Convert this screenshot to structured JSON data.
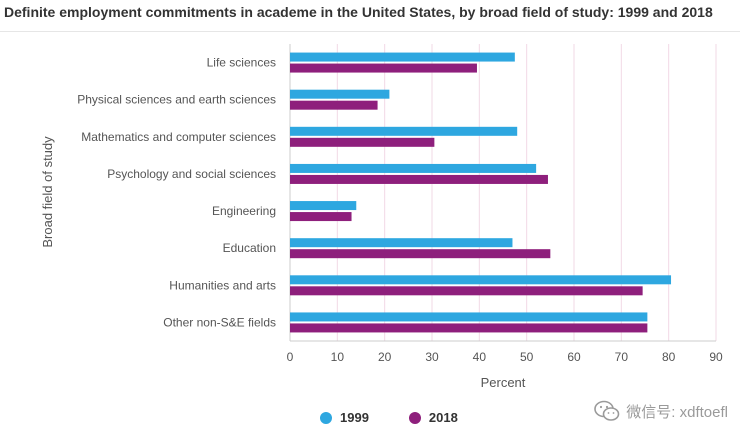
{
  "colors": {
    "1999": "#2ea7e0",
    "2018": "#8e1f7c",
    "grid": "#f2d9e6",
    "axis": "#cccccc"
  },
  "chart_data": {
    "type": "bar",
    "orientation": "horizontal",
    "title": "Definite employment commitments in academe in the United States, by broad field of study: 1999 and 2018",
    "xlabel": "Percent",
    "ylabel": "Broad field of study",
    "xlim": [
      0,
      90
    ],
    "xticks": [
      0,
      10,
      20,
      30,
      40,
      50,
      60,
      70,
      80,
      90
    ],
    "grid": true,
    "legend_position": "bottom",
    "categories": [
      "Life sciences",
      "Physical sciences and earth sciences",
      "Mathematics and computer sciences",
      "Psychology and social sciences",
      "Engineering",
      "Education",
      "Humanities and arts",
      "Other non-S&E fields"
    ],
    "series": [
      {
        "name": "1999",
        "values": [
          47.5,
          21.0,
          48.0,
          52.0,
          14.0,
          47.0,
          80.5,
          75.5
        ]
      },
      {
        "name": "2018",
        "values": [
          39.5,
          18.5,
          30.5,
          54.5,
          13.0,
          55.0,
          74.5,
          75.5
        ]
      }
    ]
  },
  "watermark": {
    "text": "微信号: xdftoefl"
  }
}
